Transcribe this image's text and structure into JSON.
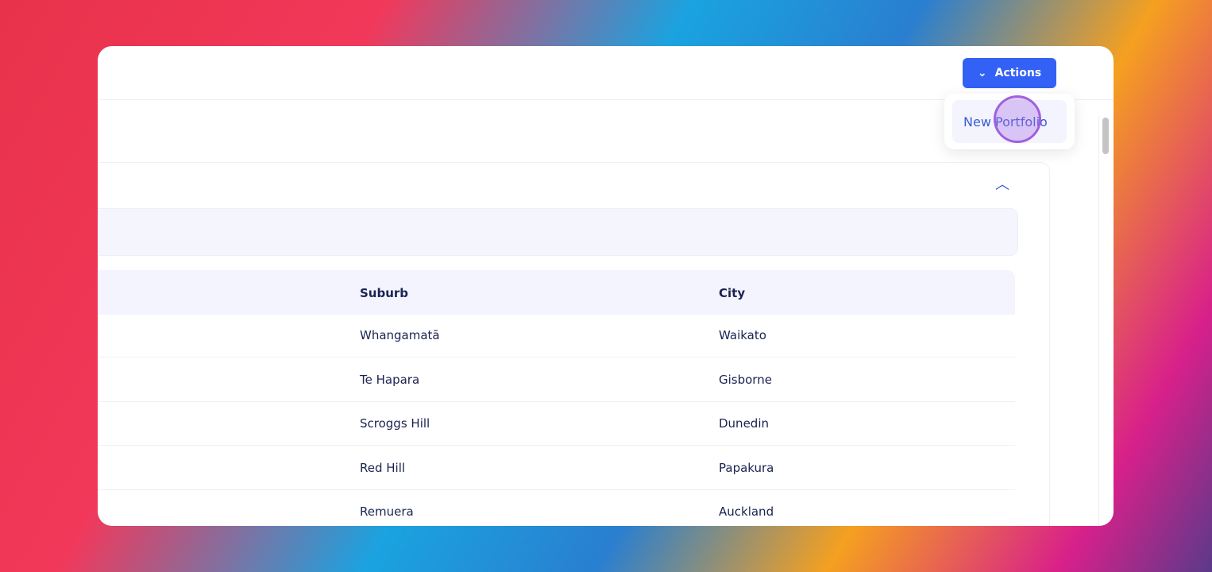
{
  "toolbar": {
    "button": "Actions",
    "menu_item": "New Portfolio"
  },
  "table": {
    "columns": [
      "Suburb",
      "City"
    ],
    "rows": [
      [
        "Whangamatā",
        "Waikato"
      ],
      [
        "Te Hapara",
        "Gisborne"
      ],
      [
        "Scroggs Hill",
        "Dunedin"
      ],
      [
        "Red Hill",
        "Papakura"
      ],
      [
        "Remuera",
        "Auckland"
      ]
    ]
  }
}
